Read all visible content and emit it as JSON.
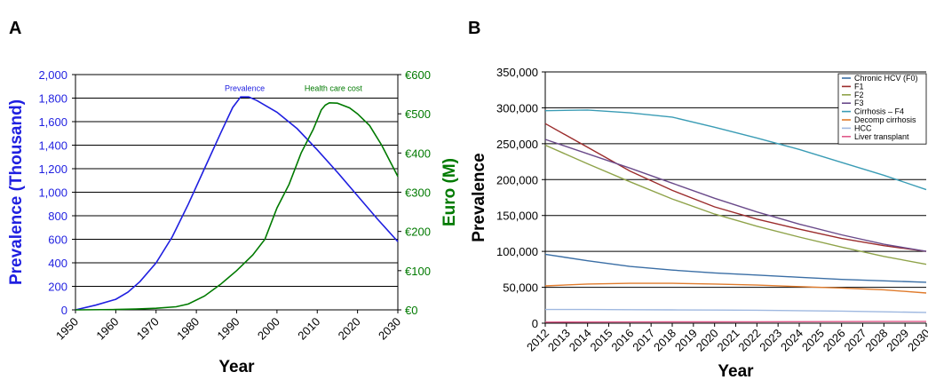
{
  "figure": {
    "panel_a_label": "A",
    "panel_b_label": "B"
  },
  "chart_data": [
    {
      "panel": "A",
      "type": "line",
      "xlabel": "Year",
      "ylabel": "Prevalence (Thousand)",
      "y2label": "Euro (M)",
      "xlim": [
        1950,
        2030
      ],
      "ylim": [
        0,
        2000
      ],
      "y2lim": [
        0,
        600
      ],
      "grid": true,
      "x_ticks": [
        1950,
        1960,
        1970,
        1980,
        1990,
        2000,
        2010,
        2020,
        2030
      ],
      "y_ticks": [
        "0",
        "200",
        "400",
        "600",
        "800",
        "1,000",
        "1,200",
        "1,400",
        "1,600",
        "1,800",
        "2,000"
      ],
      "y2_ticks": [
        "€0",
        "€100",
        "€200",
        "€300",
        "€400",
        "€500",
        "€600"
      ],
      "colors": {
        "left_axis": "#1f1fe0",
        "right_axis": "#007a00"
      },
      "annotations": [
        {
          "text": "Prevalence",
          "series": "prevalence",
          "x": 1992,
          "y": 1830
        },
        {
          "text": "Health care cost",
          "series": "cost",
          "x": 2014,
          "y": 1830
        }
      ],
      "series": [
        {
          "key": "prevalence",
          "axis": "left",
          "color": "#1f1fe0",
          "x": [
            1950,
            1955,
            1960,
            1963,
            1966,
            1970,
            1974,
            1978,
            1982,
            1986,
            1989,
            1991,
            1993,
            1995,
            2000,
            2005,
            2010,
            2015,
            2020,
            2025,
            2030
          ],
          "y": [
            0,
            40,
            90,
            150,
            240,
            400,
            620,
            900,
            1200,
            1500,
            1720,
            1810,
            1810,
            1780,
            1680,
            1540,
            1360,
            1170,
            970,
            770,
            580
          ]
        },
        {
          "key": "cost",
          "axis": "right",
          "color": "#007a00",
          "x": [
            1950,
            1960,
            1965,
            1970,
            1975,
            1978,
            1982,
            1986,
            1990,
            1994,
            1997,
            2000,
            2003,
            2006,
            2009,
            2011,
            2012,
            2013,
            2015,
            2018,
            2020,
            2023,
            2026,
            2030
          ],
          "y": [
            0,
            1,
            2,
            4,
            8,
            15,
            35,
            65,
            100,
            140,
            180,
            260,
            320,
            400,
            460,
            510,
            522,
            528,
            527,
            515,
            500,
            470,
            420,
            340
          ]
        }
      ]
    },
    {
      "panel": "B",
      "type": "line",
      "xlabel": "Year",
      "ylabel": "Prevalence",
      "xlim": [
        2012,
        2030
      ],
      "ylim": [
        0,
        350000
      ],
      "grid": true,
      "x_ticks": [
        "2012",
        "2013",
        "2014",
        "2015",
        "2016",
        "2017",
        "2018",
        "2019",
        "2020",
        "2021",
        "2022",
        "2023",
        "2024",
        "2025",
        "2026",
        "2027",
        "2028",
        "2029",
        "2030"
      ],
      "y_ticks": [
        "0",
        "50,000",
        "100,000",
        "150,000",
        "200,000",
        "250,000",
        "300,000",
        "350,000"
      ],
      "legend_position": "top-right",
      "x": [
        2012,
        2014,
        2016,
        2018,
        2020,
        2022,
        2024,
        2026,
        2028,
        2030
      ],
      "series": [
        {
          "name": "Chronic HCV (F0)",
          "color": "#3a6ea5",
          "values": [
            96000,
            87000,
            79000,
            74000,
            70000,
            67000,
            64000,
            61000,
            59000,
            57000
          ]
        },
        {
          "name": "F1",
          "color": "#9b2c2c",
          "values": [
            278000,
            245000,
            212000,
            185000,
            162000,
            145000,
            131000,
            118000,
            108000,
            100000
          ]
        },
        {
          "name": "F2",
          "color": "#8fa34a",
          "values": [
            248000,
            222000,
            197000,
            173000,
            152000,
            135000,
            120000,
            106000,
            93000,
            82000
          ]
        },
        {
          "name": "F3",
          "color": "#6a4a8a",
          "values": [
            256000,
            236000,
            216000,
            195000,
            174000,
            155000,
            138000,
            123000,
            110000,
            100000
          ]
        },
        {
          "name": "Cirrhosis – F4",
          "color": "#3a9cb5",
          "values": [
            296000,
            297000,
            293000,
            287000,
            273000,
            258000,
            242000,
            224000,
            206000,
            186000
          ]
        },
        {
          "name": "Decomp cirrhosis",
          "color": "#e07b2c",
          "values": [
            52000,
            54500,
            55500,
            55500,
            54500,
            53000,
            51000,
            49000,
            46500,
            42000
          ]
        },
        {
          "name": "HCC",
          "color": "#9fb8e0",
          "values": [
            19000,
            19000,
            18800,
            18600,
            18300,
            18000,
            17500,
            16800,
            15800,
            15000
          ]
        },
        {
          "name": "Liver transplant",
          "color": "#e05a8a",
          "values": [
            1500,
            1600,
            1700,
            1800,
            1900,
            2000,
            2100,
            2200,
            2300,
            2400
          ]
        }
      ]
    }
  ]
}
